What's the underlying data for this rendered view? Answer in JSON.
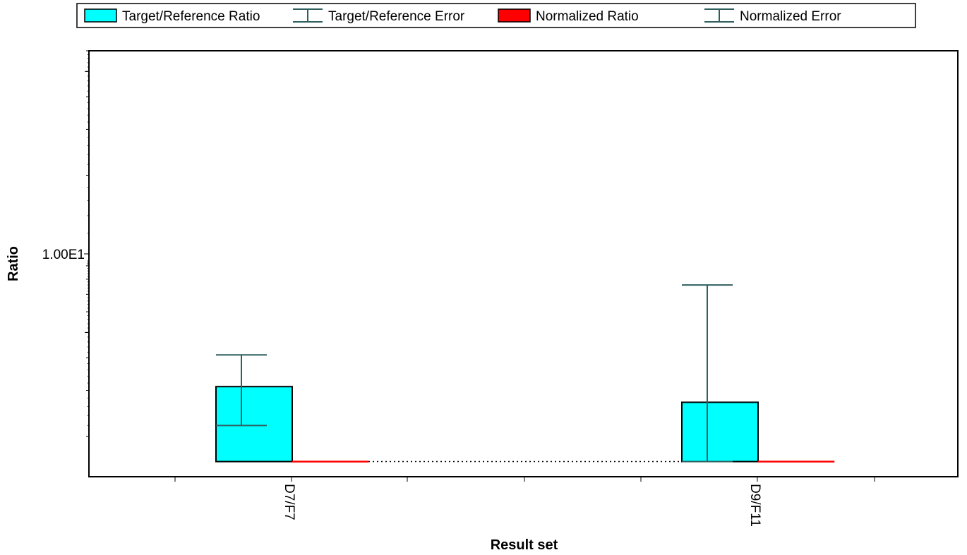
{
  "chart_data": {
    "type": "bar",
    "xlabel": "Result set",
    "ylabel": "Ratio",
    "yscale": "log",
    "ylim": [
      1.4,
      60
    ],
    "y_tick_labels": [
      {
        "value": 10,
        "label": "1.00E1"
      }
    ],
    "grid": false,
    "legend_position": "top",
    "categories": [
      "D7/F7",
      "D9/F11"
    ],
    "series": [
      {
        "name": "Target/Reference Ratio",
        "color": "#00FFFF",
        "values": [
          3.1,
          2.7
        ],
        "error_low": [
          2.2,
          1.6
        ],
        "error_high": [
          4.1,
          7.6
        ]
      },
      {
        "name": "Normalized Ratio",
        "color": "#FF0000",
        "values": [
          1.6,
          1.6
        ]
      }
    ],
    "legend": [
      {
        "label": "Target/Reference Ratio",
        "kind": "box",
        "color": "#00FFFF"
      },
      {
        "label": "Target/Reference Error",
        "kind": "errorbar",
        "color": "#2F5F5F"
      },
      {
        "label": "Normalized Ratio",
        "kind": "box",
        "color": "#FF0000"
      },
      {
        "label": "Normalized Error",
        "kind": "errorbar",
        "color": "#2F5F5F"
      }
    ],
    "error_color": "#2F5F5F"
  }
}
